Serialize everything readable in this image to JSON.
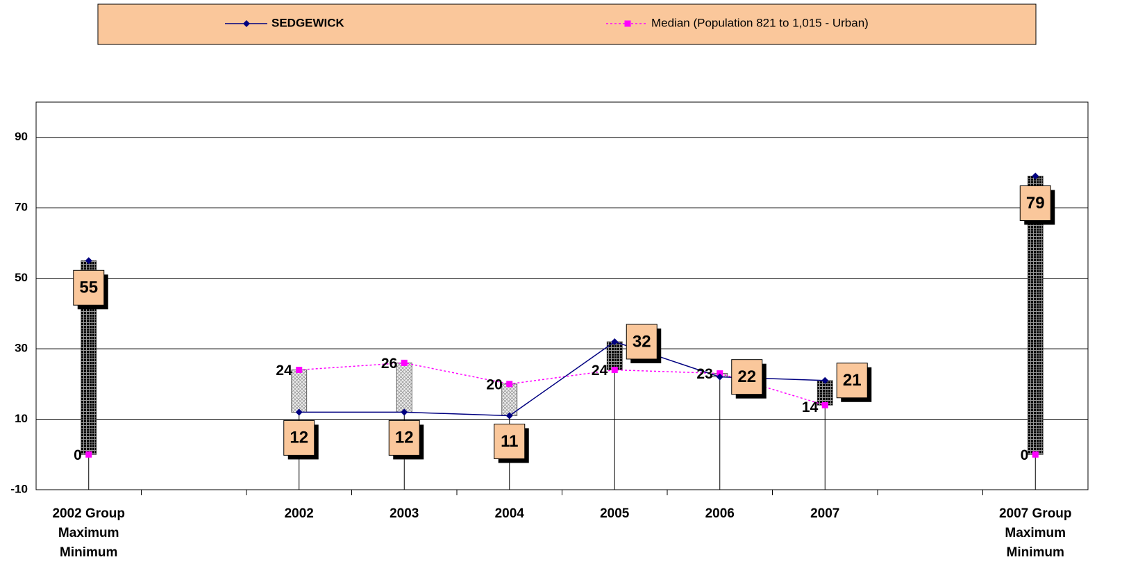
{
  "chart_data": {
    "type": "line",
    "categories": [
      "2002 Group Maximum Minimum",
      null,
      "2002",
      "2003",
      "2004",
      "2005",
      "2006",
      "2007",
      null,
      "2007 Group Maximum Minimum"
    ],
    "series": [
      {
        "name": "SEDGEWICK",
        "color": "#000080",
        "values": [
          55,
          null,
          12,
          12,
          11,
          32,
          22,
          21,
          null,
          79
        ]
      },
      {
        "name": "Median (Population 821 to 1,015 - Urban)",
        "color": "#ff00ff",
        "values": [
          0,
          null,
          24,
          26,
          20,
          24,
          23,
          14,
          null,
          0
        ]
      }
    ],
    "ylim": [
      -10,
      100
    ],
    "yticks": [
      -10,
      10,
      30,
      50,
      70,
      90
    ],
    "grid": true,
    "legend": "top"
  }
}
